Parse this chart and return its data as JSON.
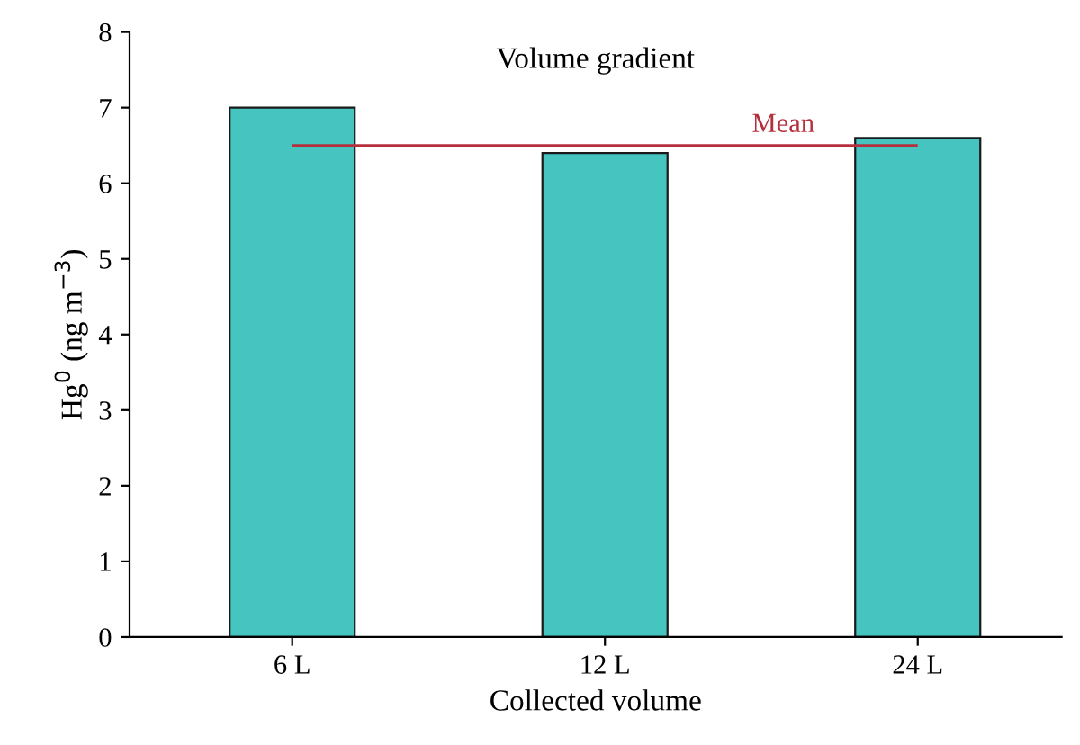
{
  "chart_data": {
    "type": "bar",
    "title": "Volume gradient",
    "xlabel": "Collected volume",
    "ylabel": "Hg$^{0}$ (ng m$^{−3}$)",
    "categories": [
      "6 L",
      "12 L",
      "24 L"
    ],
    "values": [
      7.0,
      6.4,
      6.6
    ],
    "color": "#45c4c0",
    "ylim": [
      0,
      8
    ],
    "yticks": [
      0,
      1,
      2,
      3,
      4,
      5,
      6,
      7,
      8
    ],
    "grid": false,
    "ref_lines": [
      {
        "axis": "y",
        "value": 6.5,
        "label": "Mean",
        "color": "#b5303c"
      }
    ]
  }
}
